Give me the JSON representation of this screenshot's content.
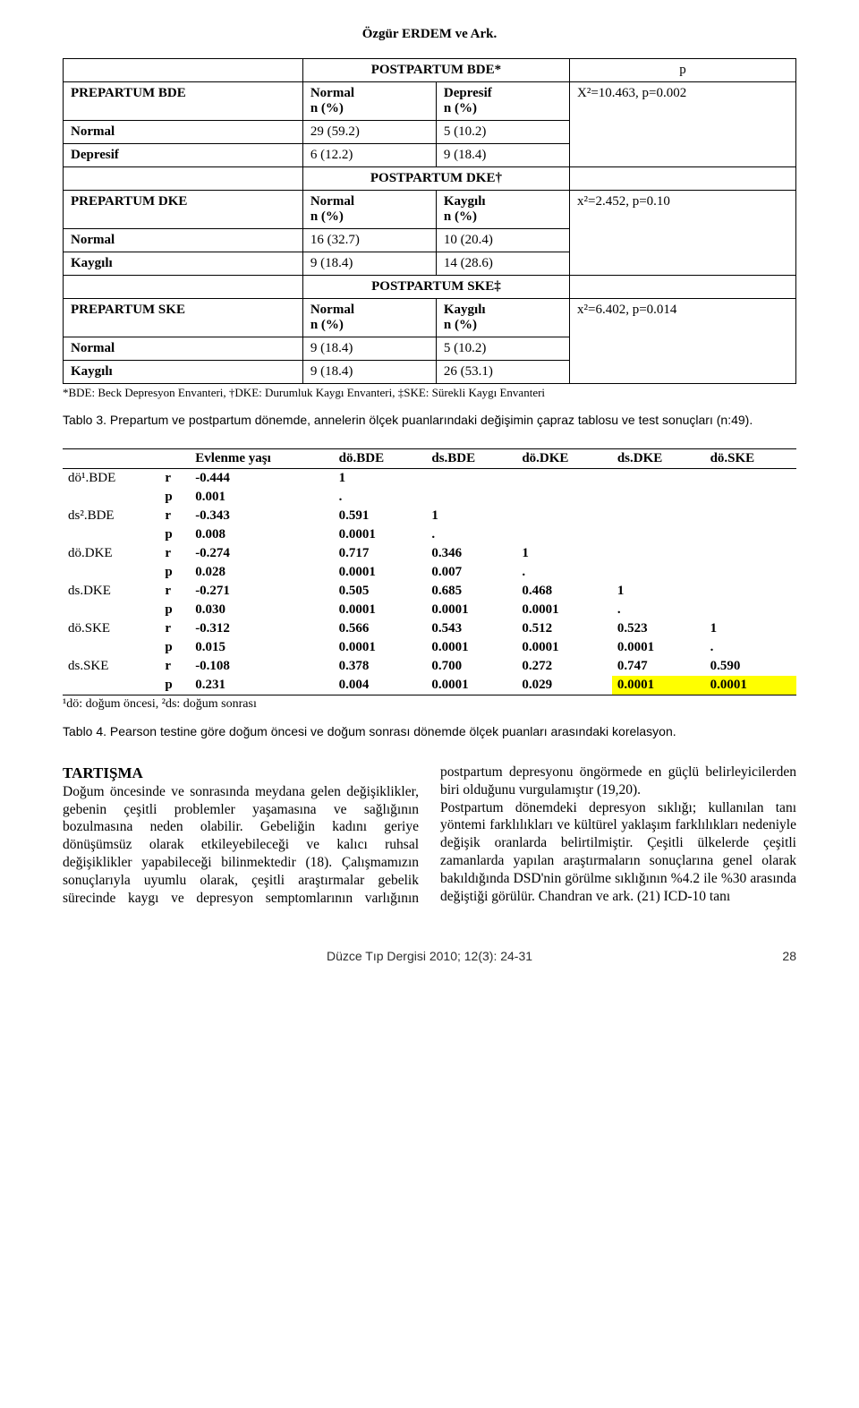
{
  "header": {
    "author_line": "Özgür ERDEM ve Ark."
  },
  "table1": {
    "type": "table",
    "border_color": "#000000",
    "background_color": "#ffffff",
    "font_family": "Times New Roman",
    "blocks": [
      {
        "span_header": "POSTPARTUM  BDE*",
        "p_label": "p",
        "row_label_title": "PREPARTUM  BDE",
        "col1_head": "Normal",
        "col2_head": "Depresif",
        "subhead": "n (%)",
        "rows": [
          {
            "label": "Normal",
            "c1": "29 (59.2)",
            "c2": "5 (10.2)"
          },
          {
            "label": "Depresif",
            "c1": "6 (12.2)",
            "c2": "9 (18.4)"
          }
        ],
        "p_value": "X²=10.463, p=0.002"
      },
      {
        "span_header": "POSTPARTUM DKE†",
        "row_label_title": "PREPARTUM  DKE",
        "col1_head": "Normal",
        "col2_head": "Kaygılı",
        "subhead": "n (%)",
        "rows": [
          {
            "label": "Normal",
            "c1": "16 (32.7)",
            "c2": "10 (20.4)"
          },
          {
            "label": "Kaygılı",
            "c1": "9 (18.4)",
            "c2": "14 (28.6)"
          }
        ],
        "p_value": "x²=2.452, p=0.10"
      },
      {
        "span_header": "POSTPARTUM SKE‡",
        "row_label_title": "PREPARTUM  SKE",
        "col1_head": "Normal",
        "col2_head": "Kaygılı",
        "subhead": "n (%)",
        "rows": [
          {
            "label": "Normal",
            "c1": "9 (18.4)",
            "c2": "5 (10.2)"
          },
          {
            "label": "Kaygılı",
            "c1": "9 (18.4)",
            "c2": "26 (53.1)"
          }
        ],
        "p_value": "x²=6.402, p=0.014"
      }
    ],
    "footnote": "*BDE: Beck Depresyon Envanteri, †DKE: Durumluk Kaygı Envanteri, ‡SKE: Sürekli Kaygı Envanteri",
    "caption": "Tablo 3. Prepartum ve postpartum dönemde, annelerin ölçek puanlarındaki değişimin çapraz tablosu ve test sonuçları (n:49)."
  },
  "table2": {
    "type": "table",
    "highlight_color": "#ffff00",
    "columns": [
      "",
      "",
      "Evlenme yaşı",
      "dö.BDE",
      "ds.BDE",
      "dö.DKE",
      "ds.DKE",
      "dö.SKE"
    ],
    "rows": [
      {
        "label": "dö¹.BDE",
        "stat": "r",
        "v": [
          "-0.444",
          "1",
          "",
          "",
          "",
          ""
        ]
      },
      {
        "label": "",
        "stat": "p",
        "v": [
          "0.001",
          ".",
          "",
          "",
          "",
          ""
        ]
      },
      {
        "label": "ds².BDE",
        "stat": "r",
        "v": [
          "-0.343",
          "0.591",
          "1",
          "",
          "",
          ""
        ]
      },
      {
        "label": "",
        "stat": "p",
        "v": [
          "0.008",
          "0.0001",
          ".",
          "",
          "",
          ""
        ]
      },
      {
        "label": "dö.DKE",
        "stat": "r",
        "v": [
          "-0.274",
          "0.717",
          "0.346",
          "1",
          "",
          ""
        ]
      },
      {
        "label": "",
        "stat": "p",
        "v": [
          "0.028",
          "0.0001",
          "0.007",
          ".",
          "",
          ""
        ]
      },
      {
        "label": "ds.DKE",
        "stat": "r",
        "v": [
          "-0.271",
          "0.505",
          "0.685",
          "0.468",
          "1",
          ""
        ]
      },
      {
        "label": "",
        "stat": "p",
        "v": [
          "0.030",
          "0.0001",
          "0.0001",
          "0.0001",
          ".",
          ""
        ]
      },
      {
        "label": "dö.SKE",
        "stat": "r",
        "v": [
          "-0.312",
          "0.566",
          "0.543",
          "0.512",
          "0.523",
          "1"
        ]
      },
      {
        "label": "",
        "stat": "p",
        "v": [
          "0.015",
          "0.0001",
          "0.0001",
          "0.0001",
          "0.0001",
          "."
        ]
      },
      {
        "label": "ds.SKE",
        "stat": "r",
        "v": [
          "-0.108",
          "0.378",
          "0.700",
          "0.272",
          "0.747",
          "0.590"
        ]
      },
      {
        "label": "",
        "stat": "p",
        "v": [
          "0.231",
          "0.004",
          "0.0001",
          "0.029",
          "0.0001",
          "0.0001"
        ],
        "hl": [
          4,
          5
        ]
      }
    ],
    "footnote": "¹dö: doğum öncesi,   ²ds: doğum sonrası",
    "caption": "Tablo 4. Pearson testine göre doğum öncesi ve doğum sonrası dönemde ölçek puanları arasındaki korelasyon."
  },
  "discussion": {
    "heading": "TARTIŞMA",
    "body": "Doğum öncesinde ve sonrasında meydana gelen değişiklikler, gebenin çeşitli problemler yaşamasına ve sağlığının bozulmasına neden olabilir. Gebeliğin kadını geriye dönüşümsüz olarak etkileyebileceği ve kalıcı ruhsal değişiklikler yapabileceği bilinmektedir (18). Çalışmamızın sonuçlarıyla uyumlu olarak, çeşitli araştırmalar gebelik sürecinde kaygı ve depresyon semptomlarının varlığının postpartum depresyonu öngörmede en güçlü belirleyicilerden biri olduğunu vurgulamıştır (19,20).\nPostpartum dönemdeki depresyon sıklığı; kullanılan tanı yöntemi farklılıkları ve kültürel yaklaşım farklılıkları nedeniyle değişik oranlarda belirtilmiştir. Çeşitli ülkelerde çeşitli zamanlarda yapılan araştırmaların sonuçlarına genel olarak bakıldığında DSD'nin görülme sıklığının %4.2 ile %30 arasında değiştiği görülür. Chandran ve ark. (21) ICD-10 tanı"
  },
  "footer": {
    "journal": "Düzce Tıp Dergisi 2010; 12(3): 24-31",
    "page": "28"
  }
}
